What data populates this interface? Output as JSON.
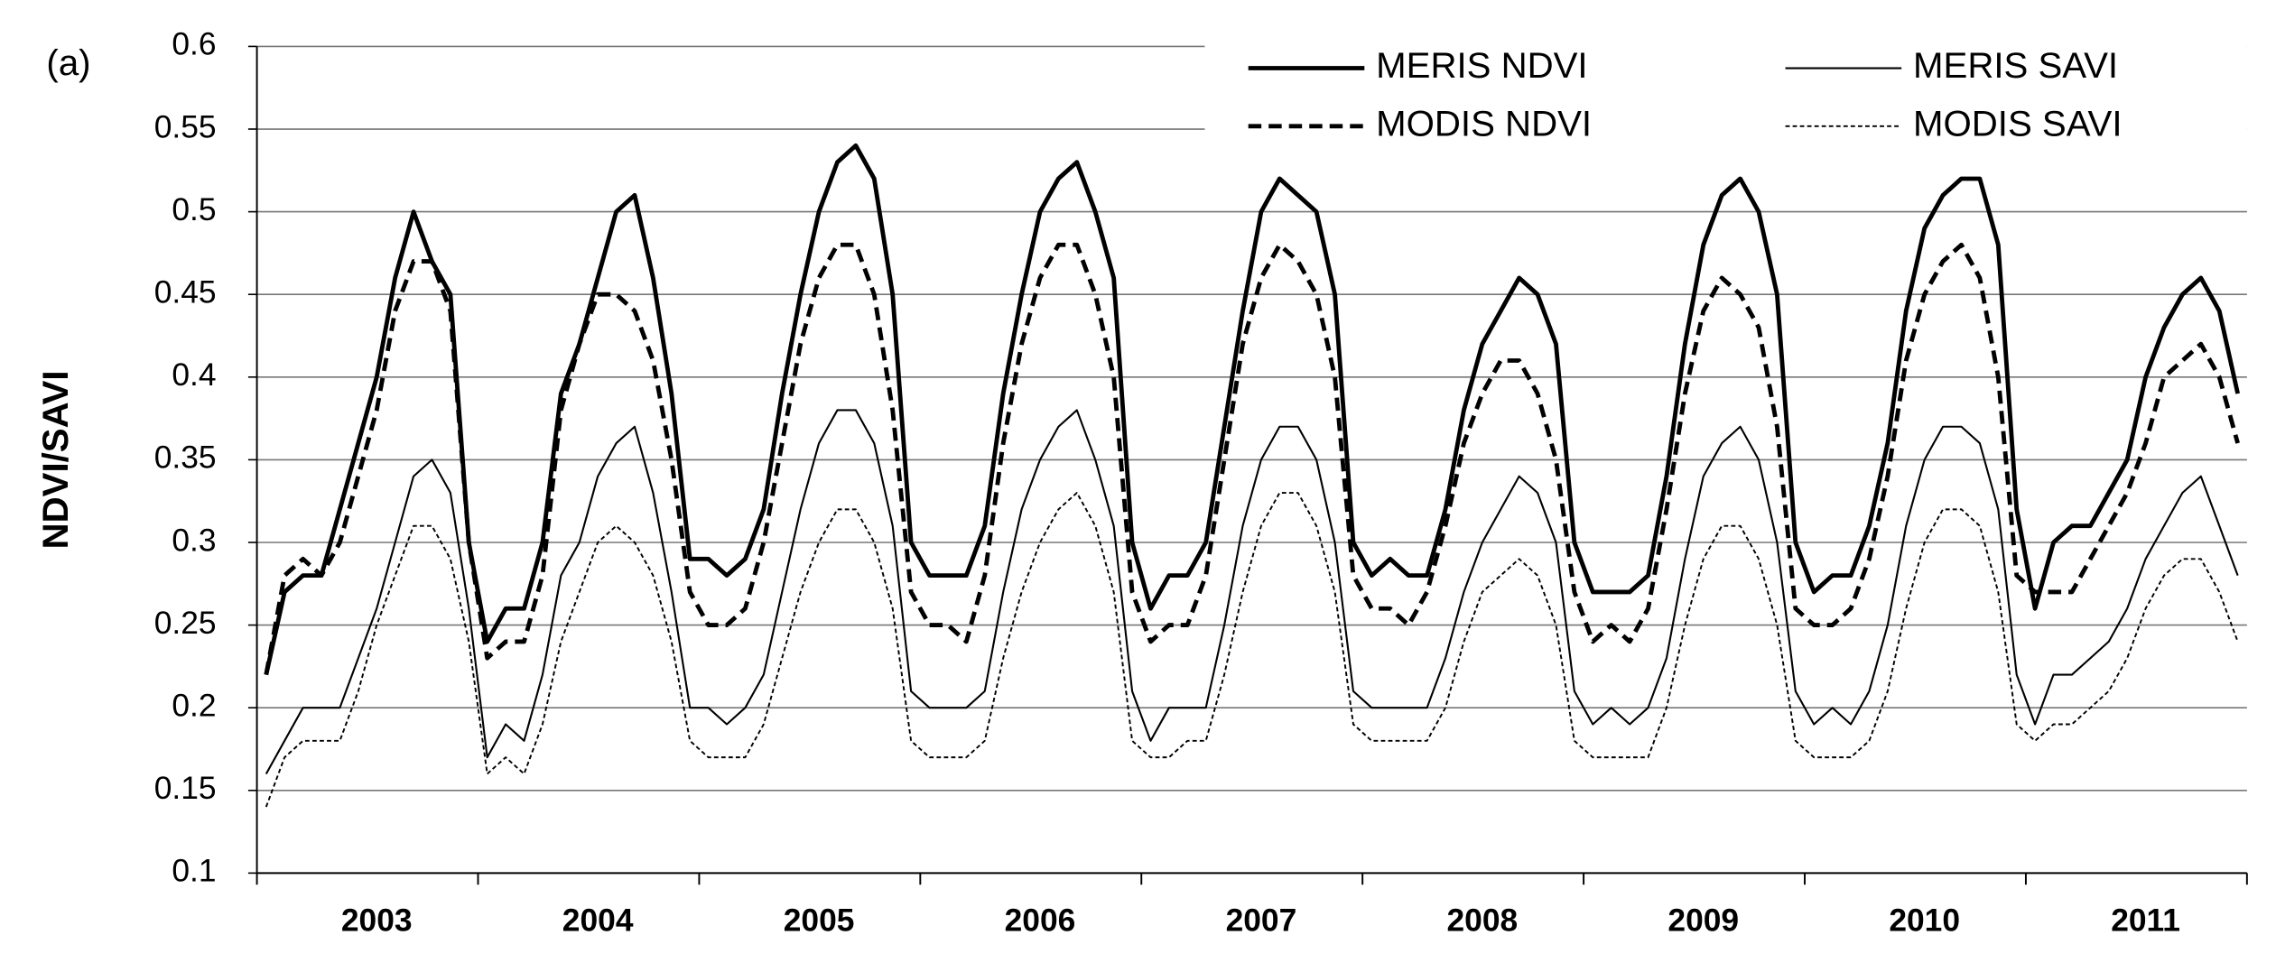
{
  "chart_data": {
    "type": "line",
    "annotation": "(a)",
    "ylabel": "NDVI/SAVI",
    "categories": [
      null,
      null,
      null,
      null,
      null,
      null,
      "2003",
      null,
      null,
      null,
      null,
      null,
      null,
      null,
      null,
      null,
      null,
      null,
      "2004",
      null,
      null,
      null,
      null,
      null,
      null,
      null,
      null,
      null,
      null,
      null,
      "2005",
      null,
      null,
      null,
      null,
      null,
      null,
      null,
      null,
      null,
      null,
      null,
      "2006",
      null,
      null,
      null,
      null,
      null,
      null,
      null,
      null,
      null,
      null,
      null,
      "2007",
      null,
      null,
      null,
      null,
      null,
      null,
      null,
      null,
      null,
      null,
      null,
      "2008",
      null,
      null,
      null,
      null,
      null,
      null,
      null,
      null,
      null,
      null,
      null,
      "2009",
      null,
      null,
      null,
      null,
      null,
      null,
      null,
      null,
      null,
      null,
      null,
      "2010",
      null,
      null,
      null,
      null,
      null,
      null,
      null,
      null,
      null,
      null,
      null,
      "2011",
      null,
      null,
      null,
      null,
      null
    ],
    "ylim": [
      0.1,
      0.6
    ],
    "yticks": [
      0.1,
      0.15,
      0.2,
      0.25,
      0.3,
      0.35,
      0.4,
      0.45,
      0.5,
      0.55,
      0.6
    ],
    "grid": true,
    "legend": "upper right",
    "series": [
      {
        "name": "MERIS NDVI",
        "color": "#000000",
        "linestyle": "solid",
        "values": [
          0.22,
          0.27,
          0.28,
          0.28,
          0.32,
          0.36,
          0.4,
          0.46,
          0.5,
          0.47,
          0.45,
          0.3,
          0.24,
          0.26,
          0.26,
          0.3,
          0.39,
          0.42,
          0.46,
          0.5,
          0.51,
          0.46,
          0.39,
          0.29,
          0.29,
          0.28,
          0.29,
          0.32,
          0.39,
          0.45,
          0.5,
          0.53,
          0.54,
          0.52,
          0.45,
          0.3,
          0.28,
          0.28,
          0.28,
          0.31,
          0.39,
          0.45,
          0.5,
          0.52,
          0.53,
          0.5,
          0.46,
          0.3,
          0.26,
          0.28,
          0.28,
          0.3,
          0.37,
          0.44,
          0.5,
          0.52,
          0.51,
          0.5,
          0.45,
          0.3,
          0.28,
          0.29,
          0.28,
          0.28,
          0.32,
          0.38,
          0.42,
          0.44,
          0.46,
          0.45,
          0.42,
          0.3,
          0.27,
          0.27,
          0.27,
          0.28,
          0.34,
          0.42,
          0.48,
          0.51,
          0.52,
          0.5,
          0.45,
          0.3,
          0.27,
          0.28,
          0.28,
          0.31,
          0.36,
          0.44,
          0.49,
          0.51,
          0.52,
          0.52,
          0.48,
          0.32,
          0.26,
          0.3,
          0.31,
          0.31,
          0.33,
          0.35,
          0.4,
          0.43,
          0.45,
          0.46,
          0.44,
          0.39
        ]
      },
      {
        "name": "MODIS NDVI",
        "color": "#000000",
        "linestyle": "dashed",
        "values": [
          0.22,
          0.28,
          0.29,
          0.28,
          0.3,
          0.34,
          0.38,
          0.44,
          0.47,
          0.47,
          0.44,
          0.3,
          0.23,
          0.24,
          0.24,
          0.28,
          0.38,
          0.42,
          0.45,
          0.45,
          0.44,
          0.41,
          0.35,
          0.27,
          0.25,
          0.25,
          0.26,
          0.3,
          0.36,
          0.42,
          0.46,
          0.48,
          0.48,
          0.45,
          0.38,
          0.27,
          0.25,
          0.25,
          0.24,
          0.28,
          0.36,
          0.42,
          0.46,
          0.48,
          0.48,
          0.45,
          0.4,
          0.27,
          0.24,
          0.25,
          0.25,
          0.28,
          0.35,
          0.42,
          0.46,
          0.48,
          0.47,
          0.45,
          0.4,
          0.28,
          0.26,
          0.26,
          0.25,
          0.27,
          0.31,
          0.36,
          0.39,
          0.41,
          0.41,
          0.39,
          0.35,
          0.27,
          0.24,
          0.25,
          0.24,
          0.26,
          0.32,
          0.39,
          0.44,
          0.46,
          0.45,
          0.43,
          0.37,
          0.26,
          0.25,
          0.25,
          0.26,
          0.29,
          0.34,
          0.41,
          0.45,
          0.47,
          0.48,
          0.46,
          0.4,
          0.28,
          0.27,
          0.27,
          0.27,
          0.29,
          0.31,
          0.33,
          0.36,
          0.4,
          0.41,
          0.42,
          0.4,
          0.36
        ]
      },
      {
        "name": "MERIS SAVI",
        "color": "#000000",
        "linestyle": "solid",
        "values": [
          0.16,
          0.18,
          0.2,
          0.2,
          0.2,
          0.23,
          0.26,
          0.3,
          0.34,
          0.35,
          0.33,
          0.26,
          0.17,
          0.19,
          0.18,
          0.22,
          0.28,
          0.3,
          0.34,
          0.36,
          0.37,
          0.33,
          0.27,
          0.2,
          0.2,
          0.19,
          0.2,
          0.22,
          0.27,
          0.32,
          0.36,
          0.38,
          0.38,
          0.36,
          0.31,
          0.21,
          0.2,
          0.2,
          0.2,
          0.21,
          0.27,
          0.32,
          0.35,
          0.37,
          0.38,
          0.35,
          0.31,
          0.21,
          0.18,
          0.2,
          0.2,
          0.2,
          0.25,
          0.31,
          0.35,
          0.37,
          0.37,
          0.35,
          0.3,
          0.21,
          0.2,
          0.2,
          0.2,
          0.2,
          0.23,
          0.27,
          0.3,
          0.32,
          0.34,
          0.33,
          0.3,
          0.21,
          0.19,
          0.2,
          0.19,
          0.2,
          0.23,
          0.29,
          0.34,
          0.36,
          0.37,
          0.35,
          0.3,
          0.21,
          0.19,
          0.2,
          0.19,
          0.21,
          0.25,
          0.31,
          0.35,
          0.37,
          0.37,
          0.36,
          0.32,
          0.22,
          0.19,
          0.22,
          0.22,
          0.23,
          0.24,
          0.26,
          0.29,
          0.31,
          0.33,
          0.34,
          0.31,
          0.28
        ]
      },
      {
        "name": "MODIS SAVI",
        "color": "#000000",
        "linestyle": "dotted",
        "values": [
          0.14,
          0.17,
          0.18,
          0.18,
          0.18,
          0.21,
          0.25,
          0.28,
          0.31,
          0.31,
          0.29,
          0.24,
          0.16,
          0.17,
          0.16,
          0.19,
          0.24,
          0.27,
          0.3,
          0.31,
          0.3,
          0.28,
          0.24,
          0.18,
          0.17,
          0.17,
          0.17,
          0.19,
          0.23,
          0.27,
          0.3,
          0.32,
          0.32,
          0.3,
          0.26,
          0.18,
          0.17,
          0.17,
          0.17,
          0.18,
          0.23,
          0.27,
          0.3,
          0.32,
          0.33,
          0.31,
          0.27,
          0.18,
          0.17,
          0.17,
          0.18,
          0.18,
          0.22,
          0.27,
          0.31,
          0.33,
          0.33,
          0.31,
          0.27,
          0.19,
          0.18,
          0.18,
          0.18,
          0.18,
          0.2,
          0.24,
          0.27,
          0.28,
          0.29,
          0.28,
          0.25,
          0.18,
          0.17,
          0.17,
          0.17,
          0.17,
          0.2,
          0.25,
          0.29,
          0.31,
          0.31,
          0.29,
          0.25,
          0.18,
          0.17,
          0.17,
          0.17,
          0.18,
          0.21,
          0.26,
          0.3,
          0.32,
          0.32,
          0.31,
          0.27,
          0.19,
          0.18,
          0.19,
          0.19,
          0.2,
          0.21,
          0.23,
          0.26,
          0.28,
          0.29,
          0.29,
          0.27,
          0.24
        ]
      }
    ]
  }
}
